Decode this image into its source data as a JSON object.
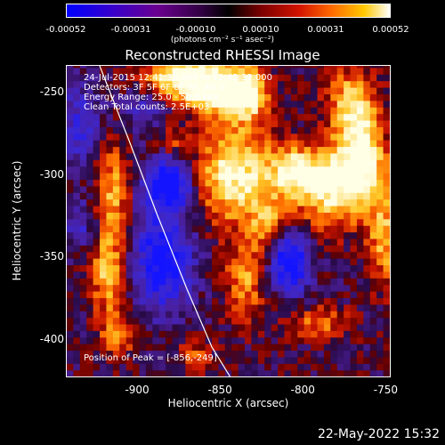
{
  "colorbar": {
    "ticks": [
      "-0.00052",
      "-0.00031",
      "-0.00010",
      "0.00010",
      "0.00031",
      "0.00052"
    ],
    "units": "(photons cm⁻² s⁻¹ asec⁻²)"
  },
  "chart_data": {
    "type": "heatmap",
    "title": "Reconstructed RHESSI Image",
    "xlabel": "Heliocentric X (arcsec)",
    "ylabel": "Heliocentric Y (arcsec)",
    "xlim": [
      -943,
      -747
    ],
    "ylim": [
      -423,
      -234
    ],
    "xticks": [
      -900,
      -850,
      -800,
      -750
    ],
    "yticks": [
      -250,
      -300,
      -350,
      -400
    ],
    "zlim": [
      -0.00052,
      0.00052
    ],
    "grid": false,
    "limb_curve": {
      "x": [
        -923,
        -905,
        -888,
        -870,
        -855,
        -844
      ],
      "y": [
        -234,
        -280,
        -325,
        -370,
        -405,
        -423
      ]
    },
    "info_lines": [
      "24-Jul-2015 12:41:32.000 to 12:42:32.000",
      "Detectors: 3F 5F 6F 8F 9F, Att 0",
      "Energy Range: 25.0 - 50.0 keV",
      "Clean      Total counts: 2.5E+03"
    ],
    "peak_label": "Position of Peak = [-856,-249]",
    "peak": [
      -856,
      -249
    ]
  },
  "footer_date": "22-May-2022 15:32"
}
